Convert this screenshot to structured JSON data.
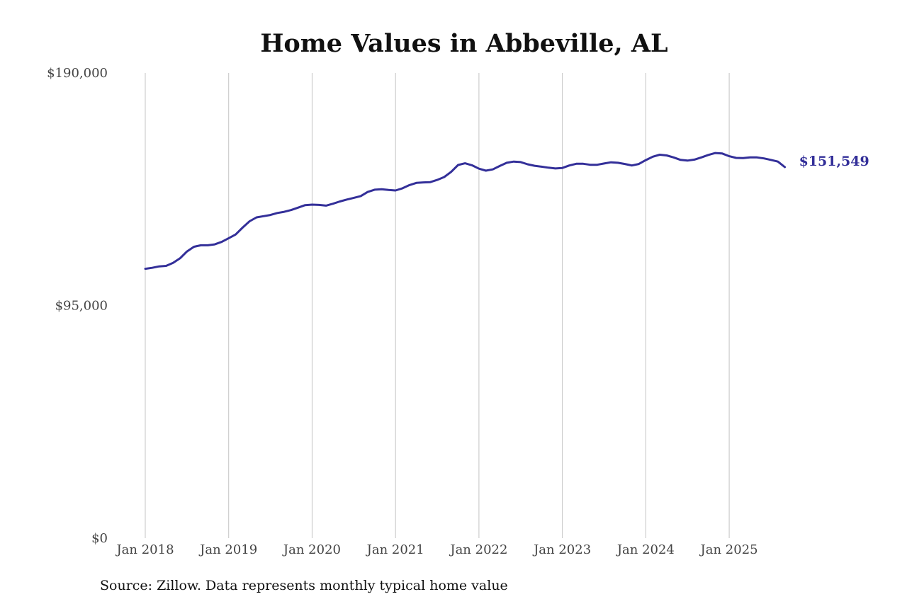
{
  "chart_data": {
    "type": "line",
    "title": "Home Values in Abbeville, AL",
    "source_note": "Source: Zillow. Data represents monthly typical home value",
    "xlabel": "",
    "ylabel": "",
    "ylim": [
      0,
      190000
    ],
    "x_range": [
      "2018-01",
      "2025-12"
    ],
    "y_ticks": [
      {
        "value": 0,
        "label": "$0"
      },
      {
        "value": 95000,
        "label": "$95,000"
      },
      {
        "value": 190000,
        "label": "$190,000"
      }
    ],
    "x_ticks": [
      {
        "date": "2018-01",
        "label": "Jan 2018"
      },
      {
        "date": "2019-01",
        "label": "Jan 2019"
      },
      {
        "date": "2020-01",
        "label": "Jan 2020"
      },
      {
        "date": "2021-01",
        "label": "Jan 2021"
      },
      {
        "date": "2022-01",
        "label": "Jan 2022"
      },
      {
        "date": "2023-01",
        "label": "Jan 2023"
      },
      {
        "date": "2024-01",
        "label": "Jan 2024"
      },
      {
        "date": "2025-01",
        "label": "Jan 2025"
      }
    ],
    "grid": "vertical",
    "line_color": "#332f99",
    "end_label": "$151,549",
    "series": [
      {
        "x": [
          "2018-01",
          "2018-02",
          "2018-03",
          "2018-04",
          "2018-05",
          "2018-06",
          "2018-07",
          "2018-08",
          "2018-09",
          "2018-10",
          "2018-11",
          "2018-12",
          "2019-01",
          "2019-02",
          "2019-03",
          "2019-04",
          "2019-05",
          "2019-06",
          "2019-07",
          "2019-08",
          "2019-09",
          "2019-10",
          "2019-11",
          "2019-12",
          "2020-01",
          "2020-02",
          "2020-03",
          "2020-04",
          "2020-05",
          "2020-06",
          "2020-07",
          "2020-08",
          "2020-09",
          "2020-10",
          "2020-11",
          "2020-12",
          "2021-01",
          "2021-02",
          "2021-03",
          "2021-04",
          "2021-05",
          "2021-06",
          "2021-07",
          "2021-08",
          "2021-09",
          "2021-10",
          "2021-11",
          "2021-12",
          "2022-01",
          "2022-02",
          "2022-03",
          "2022-04",
          "2022-05",
          "2022-06",
          "2022-07",
          "2022-08",
          "2022-09",
          "2022-10",
          "2022-11",
          "2022-12",
          "2023-01",
          "2023-02",
          "2023-03",
          "2023-04",
          "2023-05",
          "2023-06",
          "2023-07",
          "2023-08",
          "2023-09",
          "2023-10",
          "2023-11",
          "2023-12",
          "2024-01",
          "2024-02",
          "2024-03",
          "2024-04",
          "2024-05",
          "2024-06",
          "2024-07",
          "2024-08",
          "2024-09",
          "2024-10",
          "2024-11",
          "2024-12",
          "2025-01",
          "2025-02",
          "2025-03",
          "2025-04",
          "2025-05",
          "2025-06",
          "2025-07",
          "2025-08",
          "2025-09"
        ],
        "values": [
          110000,
          110400,
          111000,
          111200,
          112400,
          114300,
          117100,
          119000,
          119600,
          119600,
          120000,
          121000,
          122500,
          124000,
          126800,
          129400,
          131000,
          131500,
          132000,
          132800,
          133300,
          134000,
          135000,
          136000,
          136200,
          136100,
          135800,
          136600,
          137500,
          138300,
          139000,
          139700,
          141400,
          142300,
          142500,
          142200,
          142000,
          142900,
          144200,
          145100,
          145300,
          145400,
          146300,
          147500,
          149600,
          152400,
          153100,
          152300,
          150900,
          150100,
          150600,
          152000,
          153300,
          153800,
          153600,
          152700,
          152100,
          151700,
          151300,
          151000,
          151200,
          152200,
          152900,
          152900,
          152500,
          152500,
          153000,
          153500,
          153300,
          152800,
          152200,
          152800,
          154400,
          155800,
          156600,
          156300,
          155500,
          154500,
          154200,
          154600,
          155500,
          156500,
          157300,
          157100,
          156000,
          155300,
          155200,
          155500,
          155500,
          155100,
          154500,
          153800,
          151549
        ]
      }
    ]
  }
}
